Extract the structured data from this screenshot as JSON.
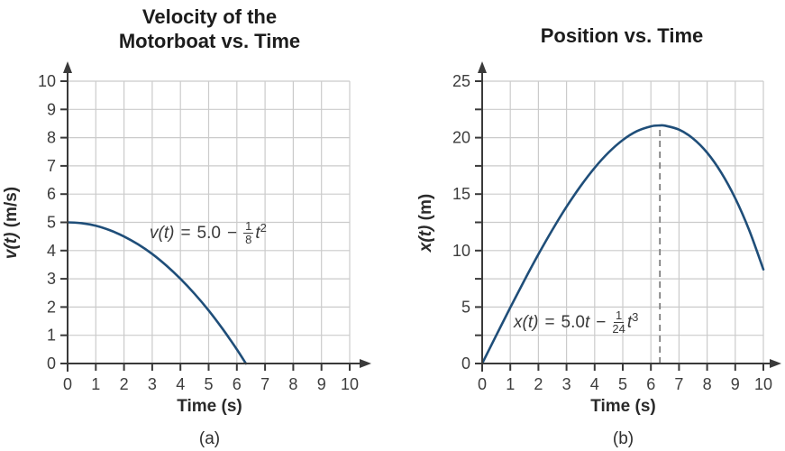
{
  "colors": {
    "curve": "#1f4e79",
    "grid": "#cbcbcb",
    "axis": "#3a3a3a",
    "tick_text": "#3d3d3d",
    "title_text": "#1c1c1c",
    "equation_text": "#3a3a3a",
    "dashed": "#7e7e7e",
    "background": "#ffffff"
  },
  "chart_data": [
    {
      "id": "velocity-vs-time",
      "type": "line",
      "title": "Velocity of the Motorboat vs. Time",
      "title_lines": [
        "Velocity of the",
        "Motorboat vs. Time"
      ],
      "xlabel": "Time (s)",
      "ylabel_var": "v(t)",
      "ylabel_unit": "(m/s)",
      "caption": "(a)",
      "xlim": [
        0,
        10
      ],
      "ylim": [
        0,
        10
      ],
      "grid": true,
      "legend": "none",
      "xticks": [
        0,
        1,
        2,
        3,
        4,
        5,
        6,
        7,
        8,
        9,
        10
      ],
      "xtick_labels": [
        "0",
        "1",
        "2",
        "3",
        "4",
        "5",
        "6",
        "7",
        "8",
        "9",
        "10"
      ],
      "yticks": [
        0,
        1,
        2,
        3,
        4,
        5,
        6,
        7,
        8,
        9,
        10
      ],
      "ytick_labels": [
        "0",
        "1",
        "2",
        "3",
        "4",
        "5",
        "6",
        "7",
        "8",
        "9",
        "10"
      ],
      "equation": {
        "text": "v(t) = 5.0 − (1/8)t²",
        "lhs": "v(t)",
        "rel": "=",
        "coef": "5.0",
        "coef_var": "",
        "minus": "−",
        "frac_num": "1",
        "frac_den": "8",
        "var": "t",
        "exp": "2"
      },
      "series": [
        {
          "name": "v(t)",
          "color": "#1f4e79",
          "points": [
            [
              0,
              5
            ],
            [
              0.5,
              4.97
            ],
            [
              1,
              4.88
            ],
            [
              1.5,
              4.72
            ],
            [
              2,
              4.5
            ],
            [
              2.5,
              4.22
            ],
            [
              3,
              3.88
            ],
            [
              3.5,
              3.47
            ],
            [
              4,
              3
            ],
            [
              4.5,
              2.47
            ],
            [
              5,
              1.88
            ],
            [
              5.5,
              1.22
            ],
            [
              6,
              0.5
            ],
            [
              6.32,
              0
            ]
          ]
        }
      ]
    },
    {
      "id": "position-vs-time",
      "type": "line",
      "title": "Position vs. Time",
      "title_lines": [
        "Position vs. Time"
      ],
      "xlabel": "Time (s)",
      "ylabel_var": "x(t)",
      "ylabel_unit": "(m)",
      "caption": "(b)",
      "xlim": [
        0,
        10
      ],
      "ylim": [
        0,
        25
      ],
      "grid": true,
      "legend": "none",
      "xticks": [
        0,
        1,
        2,
        3,
        4,
        5,
        6,
        7,
        8,
        9,
        10
      ],
      "xtick_labels": [
        "0",
        "1",
        "2",
        "3",
        "4",
        "5",
        "6",
        "7",
        "8",
        "9",
        "10"
      ],
      "yticks": [
        0,
        2.5,
        5,
        7.5,
        10,
        12.5,
        15,
        17.5,
        20,
        22.5,
        25
      ],
      "ytick_labels": [
        "0",
        "",
        "5",
        "",
        "10",
        "",
        "15",
        "",
        "20",
        "",
        "25"
      ],
      "equation": {
        "text": "x(t) = 5.0t − (1/24)t³",
        "lhs": "x(t)",
        "rel": "=",
        "coef": "5.0",
        "coef_var": "t",
        "minus": "−",
        "frac_num": "1",
        "frac_den": "24",
        "var": "t",
        "exp": "3"
      },
      "annotation": {
        "type": "dashed-vline",
        "x": 6.32,
        "y_from": 0,
        "y_to": 21.08,
        "color": "#7e7e7e"
      },
      "series": [
        {
          "name": "x(t)",
          "color": "#1f4e79",
          "points": [
            [
              0,
              0
            ],
            [
              0.5,
              2.49
            ],
            [
              1,
              4.96
            ],
            [
              1.5,
              7.36
            ],
            [
              2,
              9.67
            ],
            [
              2.5,
              11.85
            ],
            [
              3,
              13.88
            ],
            [
              3.5,
              15.71
            ],
            [
              4,
              17.33
            ],
            [
              4.5,
              18.7
            ],
            [
              5,
              19.79
            ],
            [
              5.5,
              20.57
            ],
            [
              6,
              21
            ],
            [
              6.32,
              21.08
            ],
            [
              6.5,
              21.06
            ],
            [
              7,
              20.71
            ],
            [
              7.5,
              19.92
            ],
            [
              8,
              18.67
            ],
            [
              8.5,
              16.91
            ],
            [
              9,
              14.63
            ],
            [
              9.5,
              11.78
            ],
            [
              10,
              8.33
            ]
          ]
        }
      ]
    }
  ]
}
